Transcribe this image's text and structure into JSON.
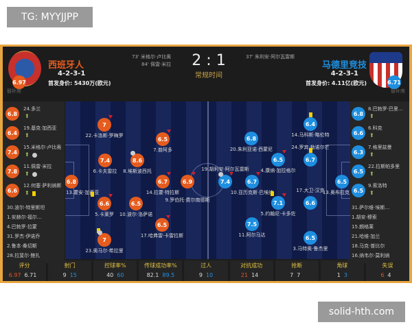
{
  "watermarks": {
    "top_left": "TG: MYYJJPP",
    "bottom_right": "solid-hth.com"
  },
  "colors": {
    "home": "#e65c1e",
    "away": "#1e8fe0",
    "accent": "#e8a640",
    "yellow_card": "#f0d000"
  },
  "match": {
    "score": "2 : 1",
    "status": "常规时间",
    "home_goals": [
      "73' 米格尔·卢比奥",
      "84' 佩雷·米拉"
    ],
    "away_goals": [
      "37' 朱利安·阿尔瓦雷斯"
    ]
  },
  "home": {
    "name": "西班牙人",
    "rating": "6.97",
    "formation": "4-2-3-1",
    "value": "首发身价: 5430万(欧元)",
    "bench_label": "替补席",
    "bench_rated": [
      {
        "no": "24.多兰",
        "r": "6.8",
        "icons": []
      },
      {
        "no": "19.基克·加西亚",
        "r": "6.4",
        "icons": []
      },
      {
        "no": "15.米格尔·卢比奥",
        "r": "7.4",
        "icons": [
          "ball"
        ]
      },
      {
        "no": "11.佩雷·米拉",
        "r": "7.8",
        "icons": [
          "ball"
        ]
      },
      {
        "no": "12.何塞·萨利纳斯",
        "r": "6.6",
        "icons": [
          "card"
        ]
      }
    ],
    "bench_other": [
      "30.波尔·特里斯坦",
      "1.安赫尔·福尔…",
      "4.巴勃罗·拉蒙",
      "31.罗杰·伊诺乔",
      "2.鲁本·桑切斯",
      "28.拉斐尔·鲍扎"
    ],
    "players": [
      {
        "n": "22.卡洛斯·罗梅罗",
        "r": "7"
      },
      {
        "n": "7.普阿多",
        "r": "6.5"
      },
      {
        "n": "6.卡夫雷拉",
        "r": "7.4"
      },
      {
        "n": "8.埃斯波西托",
        "r": "8.6"
      },
      {
        "n": "13.霍安·加西亚",
        "r": "6.8"
      },
      {
        "n": "14.拉霍·特拉斯",
        "r": "6.7"
      },
      {
        "n": "9.罗伯托·费尔南德斯",
        "r": "6.9"
      },
      {
        "n": "5.卡莱罗",
        "r": "6.6"
      },
      {
        "n": "10.波尔·洛萨诺",
        "r": "6.5"
      },
      {
        "n": "17.哈弗雷·卡雷拉斯",
        "r": "6.5"
      },
      {
        "n": "23.奥马尔·希拉里",
        "r": "7"
      }
    ]
  },
  "away": {
    "name": "马德里竞技",
    "rating": "6.71",
    "formation": "4-2-3-1",
    "value": "首发身价: 4.11亿(欧元)",
    "bench_label": "替补席",
    "bench_rated": [
      {
        "no": "8.巴勃罗·巴里…",
        "r": "6.8",
        "icons": []
      },
      {
        "no": "6.科克",
        "r": "6.6",
        "icons": []
      },
      {
        "no": "7.格里兹曼",
        "r": "6.3",
        "icons": []
      },
      {
        "no": "22.拉斯帕多里",
        "r": "6.5",
        "icons": []
      },
      {
        "no": "9.索洛特",
        "r": "6.5",
        "icons": []
      }
    ],
    "bench_other": [
      "31.萨尔维·埃斯…",
      "1.胡安·穆索",
      "15.朗格莱",
      "21.哈维·加兰",
      "18.马克·普比尔",
      "16.纳韦尔·莫利纳"
    ],
    "players": [
      {
        "n": "14.马科斯·略伦特",
        "r": "6.4"
      },
      {
        "n": "20.朱利亚诺·西蒙尼",
        "r": "6.8"
      },
      {
        "n": "4.康纳·加拉格尔",
        "r": "6.5"
      },
      {
        "n": "24.罗宾·勒诺尔芒",
        "r": "6.7"
      },
      {
        "n": "19.胡利安·阿尔瓦雷斯",
        "r": "7.4"
      },
      {
        "n": "10.亚历克斯·巴埃纳",
        "r": "6.7"
      },
      {
        "n": "13.奥布拉克",
        "r": "6.5"
      },
      {
        "n": "5.约翰尼·卡多佐",
        "r": "7.1"
      },
      {
        "n": "17.大卫·汉克",
        "r": "6.6"
      },
      {
        "n": "11.阿尔马达",
        "r": "7.5"
      },
      {
        "n": "3.马特奥·鲁杰里",
        "r": "6.5"
      }
    ]
  },
  "stats": [
    {
      "label": "评分",
      "home": "6.97",
      "away": "6.71",
      "lead": "home"
    },
    {
      "label": "射门",
      "home": "9",
      "away": "15",
      "lead": "away"
    },
    {
      "label": "控球率%",
      "home": "40",
      "away": "60",
      "lead": "away"
    },
    {
      "label": "传球成功率%",
      "home": "82.1",
      "away": "89.5",
      "lead": "away"
    },
    {
      "label": "过人",
      "home": "9",
      "away": "10",
      "lead": "away"
    },
    {
      "label": "对抗成功",
      "home": "21",
      "away": "14",
      "lead": "home"
    },
    {
      "label": "抢断",
      "home": "7",
      "away": "7",
      "lead": "none"
    },
    {
      "label": "角球",
      "home": "1",
      "away": "3",
      "lead": "away"
    },
    {
      "label": "失误",
      "home": "6",
      "away": "4",
      "lead": "home"
    }
  ]
}
